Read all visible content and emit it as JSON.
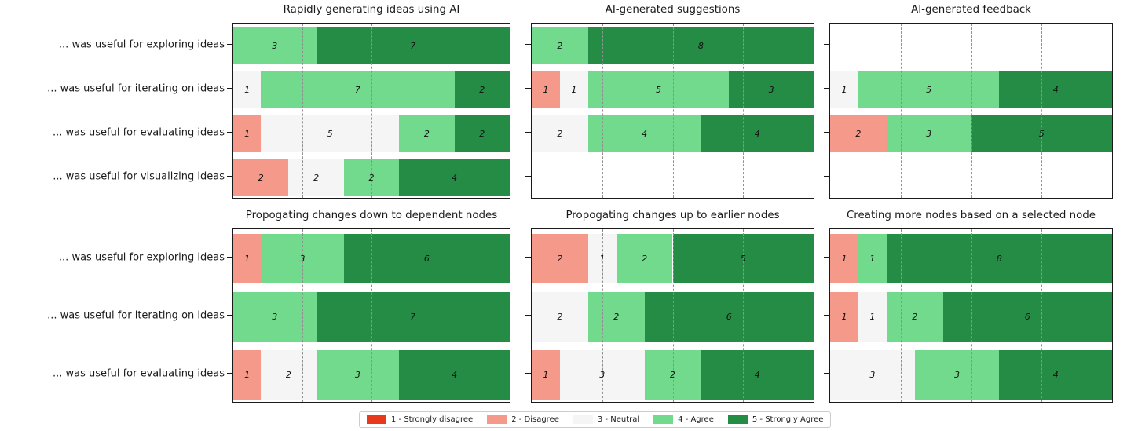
{
  "chart_data": {
    "type": "bar",
    "variant": "horizontal-stacked-likert",
    "x_max": 10,
    "gridlines_x": [
      2.5,
      5,
      7.5
    ],
    "grid": {
      "rows": 2,
      "cols": 3
    },
    "legend": {
      "position": "bottom-center",
      "items": [
        {
          "key": "strongly-disagree",
          "label": "1 - Strongly disagree",
          "color": "#e8391d"
        },
        {
          "key": "disagree",
          "label": "2 - Disagree",
          "color": "#f59a8a"
        },
        {
          "key": "neutral",
          "label": "3 - Neutral",
          "color": "#f5f5f5"
        },
        {
          "key": "agree",
          "label": "4 - Agree",
          "color": "#72da8c"
        },
        {
          "key": "strongly-agree",
          "label": "5 - Strongly Agree",
          "color": "#248c44"
        }
      ]
    },
    "row_categories": {
      "top": [
        "... was useful for exploring ideas",
        "... was useful for iterating on ideas",
        "... was useful for evaluating ideas",
        "... was useful for visualizing ideas"
      ],
      "bottom": [
        "... was useful for exploring ideas",
        "... was useful for iterating on ideas",
        "... was useful for evaluating ideas"
      ]
    },
    "subplots": [
      {
        "title": "Rapidly generating ideas using AI",
        "grid_row": 0,
        "grid_col": 0,
        "rows": [
          {
            "counts": [
              0,
              0,
              0,
              3,
              7
            ]
          },
          {
            "counts": [
              0,
              0,
              1,
              7,
              2
            ]
          },
          {
            "counts": [
              0,
              1,
              5,
              2,
              2
            ]
          },
          {
            "counts": [
              0,
              2,
              2,
              2,
              4
            ]
          }
        ]
      },
      {
        "title": "AI-generated suggestions",
        "grid_row": 0,
        "grid_col": 1,
        "rows": [
          {
            "counts": [
              0,
              0,
              0,
              2,
              8
            ]
          },
          {
            "counts": [
              0,
              1,
              1,
              5,
              3
            ]
          },
          {
            "counts": [
              0,
              0,
              2,
              4,
              4
            ]
          },
          {
            "counts": [
              0,
              0,
              0,
              0,
              0
            ]
          }
        ]
      },
      {
        "title": "AI-generated feedback",
        "grid_row": 0,
        "grid_col": 2,
        "rows": [
          {
            "counts": [
              0,
              0,
              0,
              0,
              0
            ]
          },
          {
            "counts": [
              0,
              0,
              1,
              5,
              4
            ]
          },
          {
            "counts": [
              0,
              2,
              0,
              3,
              5
            ]
          },
          {
            "counts": [
              0,
              0,
              0,
              0,
              0
            ]
          }
        ]
      },
      {
        "title": "Propogating changes down to dependent nodes",
        "grid_row": 1,
        "grid_col": 0,
        "rows": [
          {
            "counts": [
              0,
              1,
              0,
              3,
              6
            ]
          },
          {
            "counts": [
              0,
              0,
              0,
              3,
              7
            ]
          },
          {
            "counts": [
              0,
              1,
              2,
              3,
              4
            ]
          }
        ]
      },
      {
        "title": "Propogating changes up to earlier nodes",
        "grid_row": 1,
        "grid_col": 1,
        "rows": [
          {
            "counts": [
              0,
              2,
              1,
              2,
              5
            ]
          },
          {
            "counts": [
              0,
              0,
              2,
              2,
              6
            ]
          },
          {
            "counts": [
              0,
              1,
              3,
              2,
              4
            ]
          }
        ]
      },
      {
        "title": "Creating more nodes based on a selected node",
        "grid_row": 1,
        "grid_col": 2,
        "rows": [
          {
            "counts": [
              0,
              1,
              0,
              1,
              8
            ]
          },
          {
            "counts": [
              0,
              1,
              1,
              2,
              6
            ]
          },
          {
            "counts": [
              0,
              0,
              3,
              3,
              4
            ]
          }
        ]
      }
    ]
  }
}
